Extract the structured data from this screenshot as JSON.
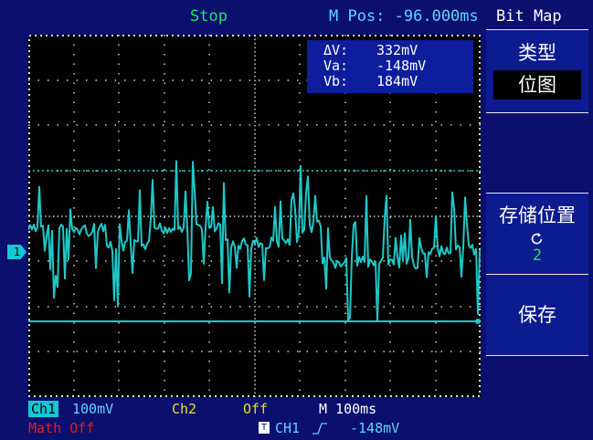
{
  "header": {
    "run_state": "Stop",
    "mpos": "M Pos: -96.000ms",
    "menu_title": "Bit Map"
  },
  "cursor": {
    "delta_label": "ΔV:",
    "delta_value": "332mV",
    "va_label": "Va:",
    "va_value": "-148mV",
    "vb_label": "Vb:",
    "vb_value": "184mV"
  },
  "menu": {
    "type_label": "类型",
    "type_value": "位图",
    "storage_label": "存储位置",
    "storage_icon": "refresh-icon",
    "storage_value": "2",
    "save_label": "保存"
  },
  "status": {
    "ch1_label": "Ch1",
    "ch1_scale": "100mV",
    "ch2_label": "Ch2",
    "ch2_state": "Off",
    "timebase": "M 100ms",
    "math": "Math Off",
    "trigger_icon": "T",
    "trigger_source": "CH1",
    "trigger_slope": "rising-edge-icon",
    "trigger_level": "-148mV"
  },
  "markers": {
    "ch1": "1"
  },
  "colors": {
    "trace": "#1ec8c8",
    "state_text": "#22e06a",
    "info_text": "#5fd6ff",
    "ch2": "#e8e020",
    "math": "#e02020"
  }
}
